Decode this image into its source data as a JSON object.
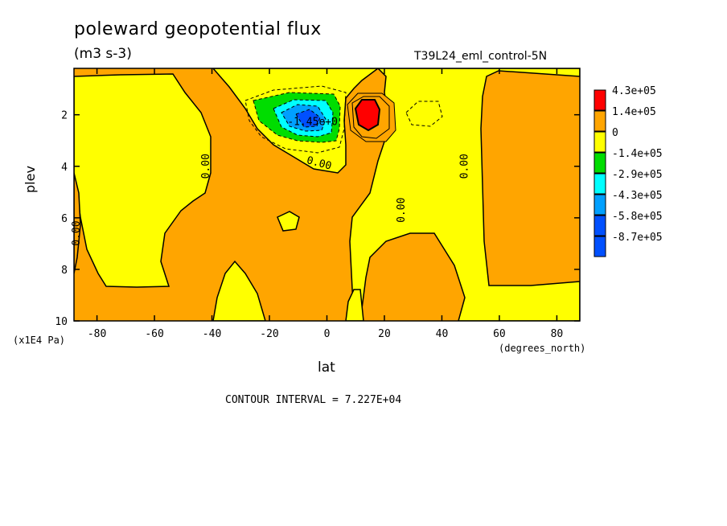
{
  "chart_data": {
    "type": "heatmap",
    "title": "poleward geopotential flux",
    "units": "(m3 s-3)",
    "run_label": "T39L24_eml_control-5N",
    "xlabel": "lat",
    "xunits": "(degrees_north)",
    "ylabel": "plev",
    "yunits": "(x1E4 Pa)",
    "xlim": [
      -88,
      88
    ],
    "ylim": [
      10,
      0.2
    ],
    "x_ticks": [
      "-80",
      "-60",
      "-40",
      "-20",
      "0",
      "20",
      "40",
      "60",
      "80"
    ],
    "y_ticks": [
      "2",
      "4",
      "6",
      "8",
      "10"
    ],
    "contour_interval": "CONTOUR INTERVAL = 7.227E+04",
    "levels": [
      {
        "label": "4.3e+05",
        "color": "#ff0000"
      },
      {
        "label": "1.4e+05",
        "color": "#ffa500"
      },
      {
        "label": "0",
        "color": "#ffff00"
      },
      {
        "label": "-1.4e+05",
        "color": "#00dd00"
      },
      {
        "label": "-2.9e+05",
        "color": "#00ffff"
      },
      {
        "label": "-4.3e+05",
        "color": "#00a0ff"
      },
      {
        "label": "-5.8e+05",
        "color": "#0050ff"
      },
      {
        "label": "-8.7e+05",
        "color": "#0050ff"
      }
    ],
    "contour_labels": [
      {
        "text": "0.00",
        "x": -41,
        "y": 4.0
      },
      {
        "text": "0.00",
        "x": -3,
        "y": 4.0
      },
      {
        "text": "0.00",
        "x": 27,
        "y": 5.7
      },
      {
        "text": "0.00",
        "x": 49,
        "y": 4.0
      },
      {
        "text": "0.00",
        "x": -86,
        "y": 6.6
      },
      {
        "text": "-1.45e+0",
        "x": -5,
        "y": 2.4
      }
    ]
  }
}
